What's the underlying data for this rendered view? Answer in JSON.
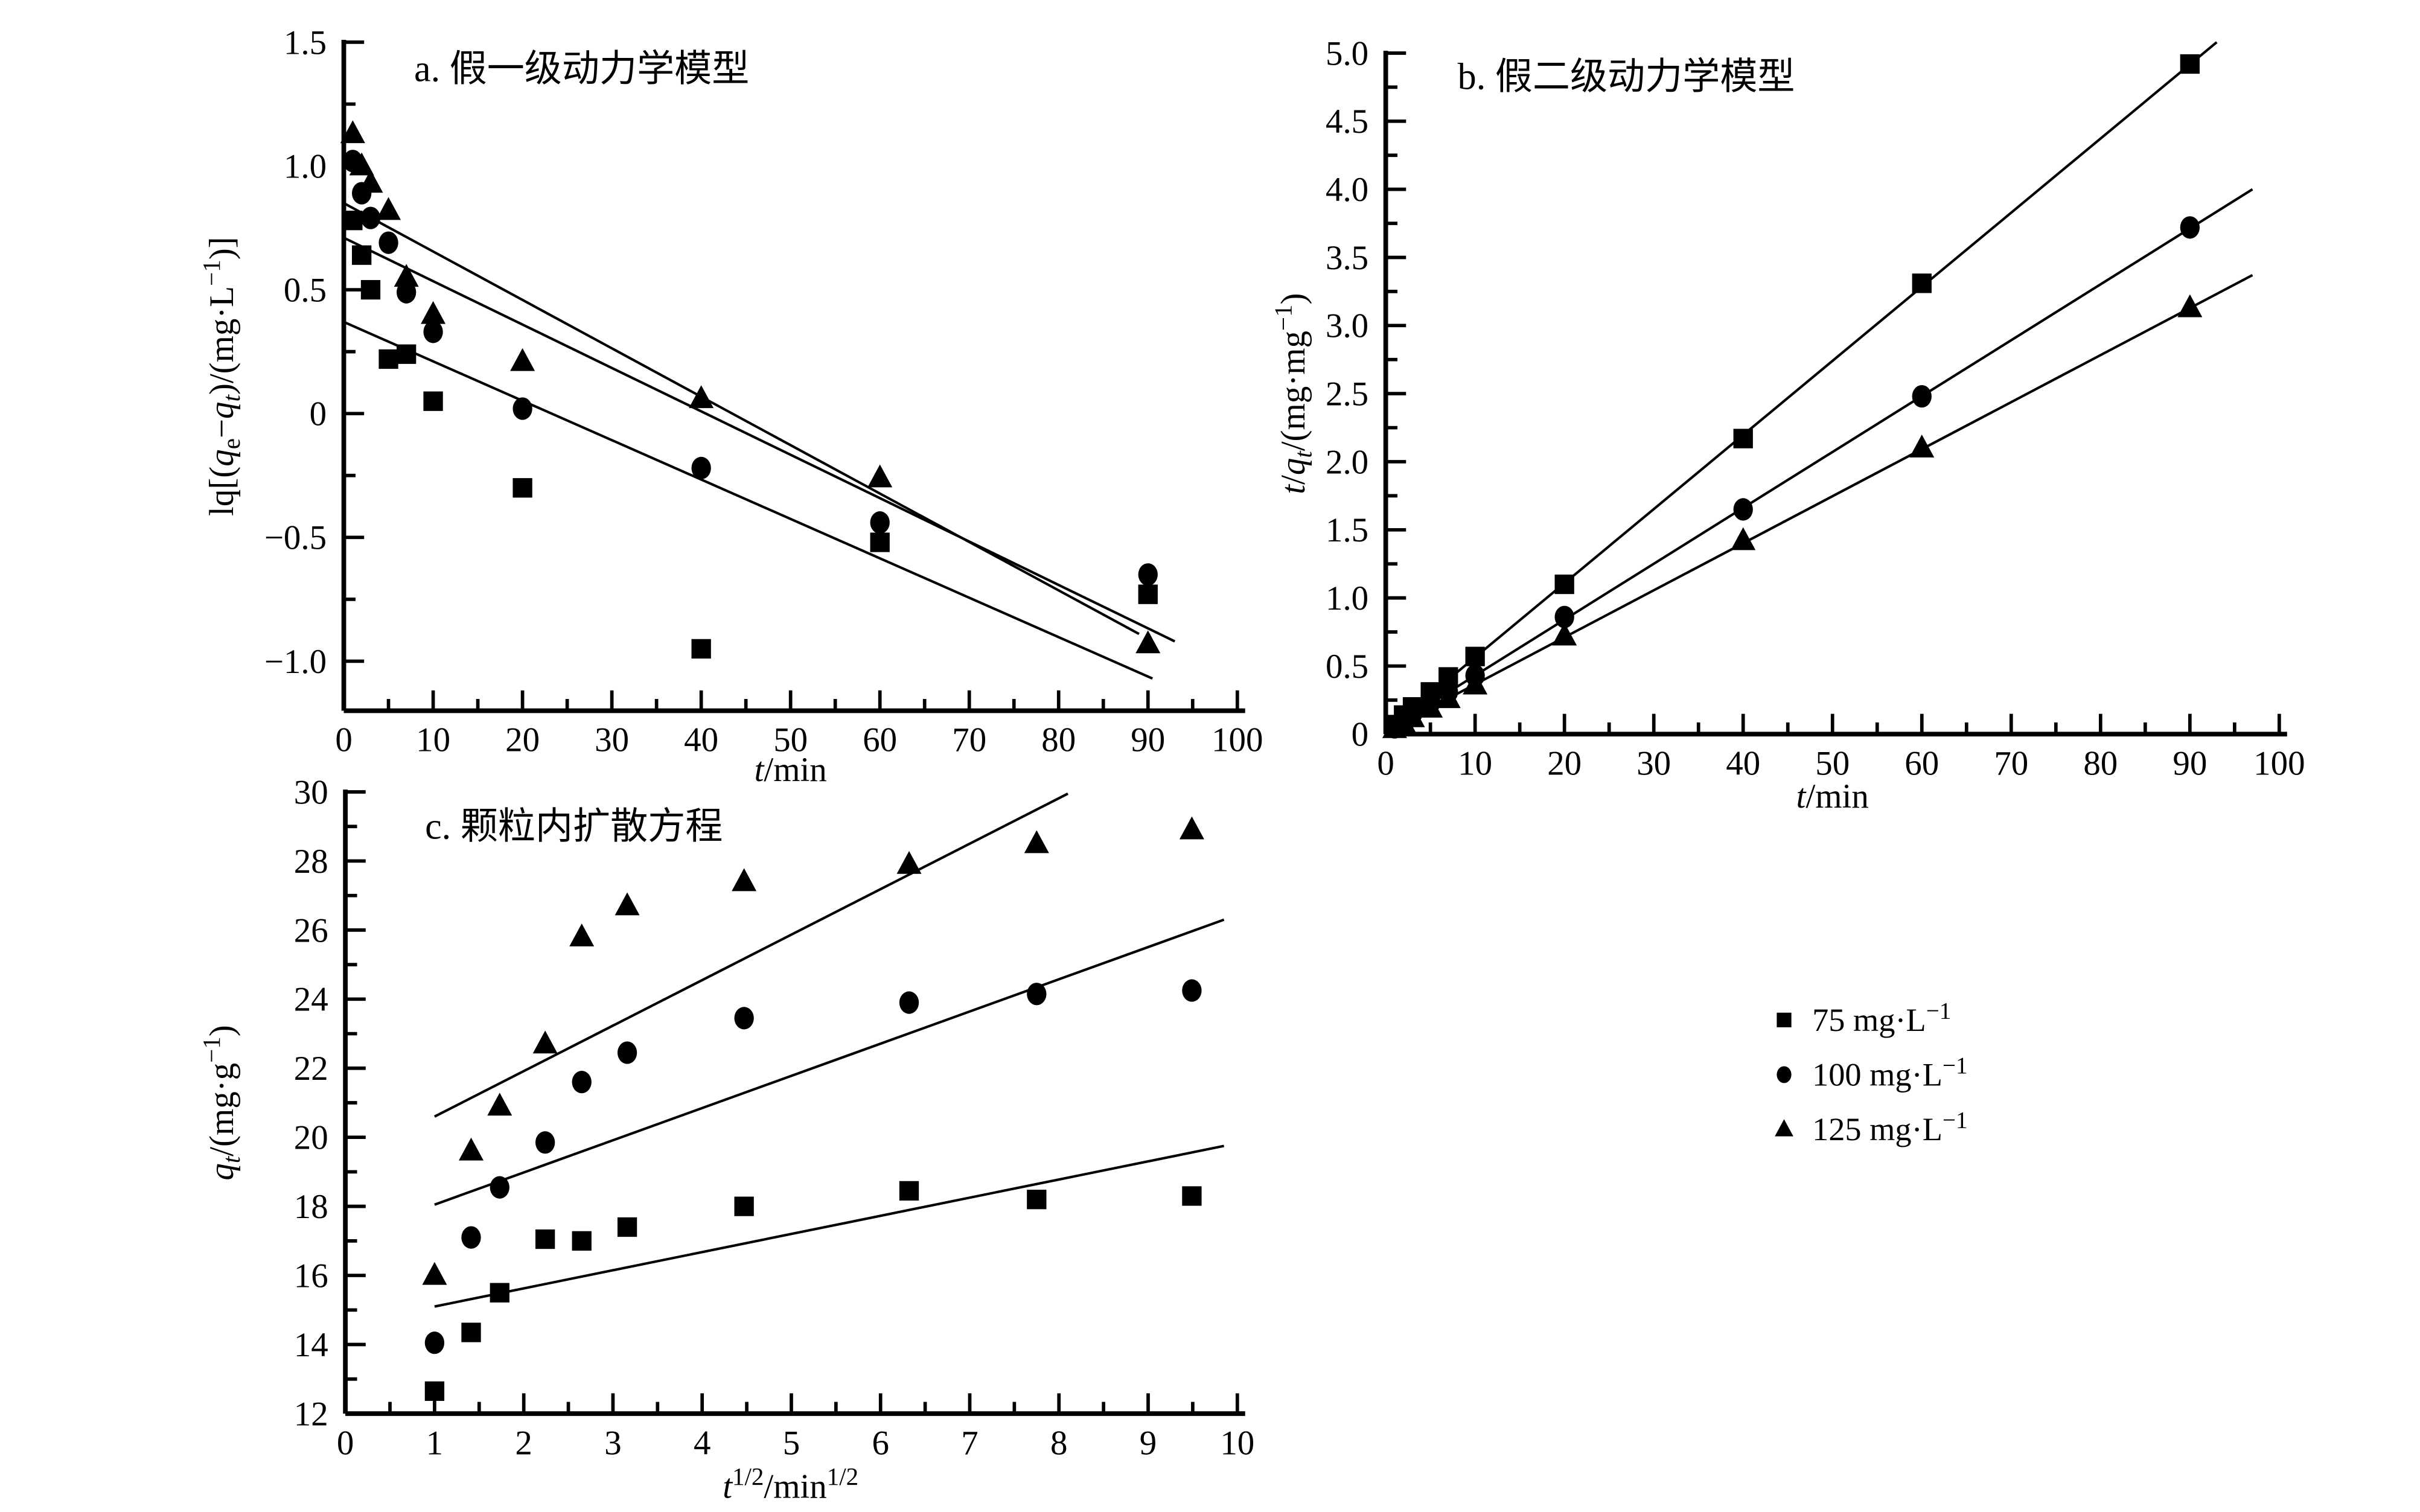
{
  "figure": {
    "background": "#ffffff",
    "ink_color": "#000000",
    "panels_note": "Three adsorption-kinetics fitting panels sharing one legend"
  },
  "legend": {
    "items": [
      {
        "marker": "square",
        "label_parts": [
          {
            "t": "75 mg·L"
          },
          {
            "t": "−1",
            "sup": 1
          }
        ],
        "label_text": "75 mg·L−1"
      },
      {
        "marker": "circle",
        "label_parts": [
          {
            "t": "100 mg·L"
          },
          {
            "t": "−1",
            "sup": 1
          }
        ],
        "label_text": "100 mg·L−1"
      },
      {
        "marker": "triangle",
        "label_parts": [
          {
            "t": "125 mg·L"
          },
          {
            "t": "−1",
            "sup": 1
          }
        ],
        "label_text": "125 mg·L−1"
      }
    ]
  },
  "chart_data": [
    {
      "id": "a",
      "type": "scatter",
      "title": "a. 假一级动力学模型",
      "xlabel_parts": [
        {
          "t": "t",
          "i": 1
        },
        {
          "t": "/min"
        }
      ],
      "ylabel_parts": [
        {
          "t": "lq[("
        },
        {
          "t": "q",
          "i": 1
        },
        {
          "t": "e",
          "sub": 1
        },
        {
          "t": "−"
        },
        {
          "t": "q",
          "i": 1
        },
        {
          "t": "t",
          "i": 1,
          "sub": 1
        },
        {
          "t": ")/(mg·L"
        },
        {
          "t": "−1",
          "sup": 1
        },
        {
          "t": ")]"
        }
      ],
      "xlim": [
        0,
        100
      ],
      "ylim": [
        -1.2,
        1.5
      ],
      "grid": false,
      "xticks": {
        "values": [
          0,
          10,
          20,
          30,
          40,
          50,
          60,
          70,
          80,
          90,
          100
        ],
        "labels": [
          "0",
          "10",
          "20",
          "30",
          "40",
          "50",
          "60",
          "70",
          "80",
          "90",
          "100"
        ]
      },
      "xticks_minor": [
        5,
        15,
        25,
        35,
        45,
        55,
        65,
        75,
        85,
        95
      ],
      "yticks": {
        "values": [
          1.5,
          1.0,
          0.5,
          0,
          -0.5,
          -1.0
        ],
        "labels": [
          "1.5",
          "1.0",
          "0.5",
          "0",
          "−0.5",
          "−1.0"
        ]
      },
      "yticks_minor": [
        1.25,
        0.75,
        0.25,
        -0.25,
        -0.75
      ],
      "series": [
        {
          "name": "75 mg·L−1",
          "marker": "square",
          "points": [
            [
              1,
              0.78
            ],
            [
              2,
              0.64
            ],
            [
              3,
              0.5
            ],
            [
              5,
              0.22
            ],
            [
              7,
              0.24
            ],
            [
              10,
              0.05
            ],
            [
              20,
              -0.3
            ],
            [
              40,
              -0.95
            ],
            [
              60,
              -0.52
            ],
            [
              90,
              -0.73
            ]
          ]
        },
        {
          "name": "100 mg·L−1",
          "marker": "circle",
          "points": [
            [
              1,
              1.02
            ],
            [
              2,
              0.89
            ],
            [
              3,
              0.79
            ],
            [
              5,
              0.69
            ],
            [
              7,
              0.49
            ],
            [
              10,
              0.33
            ],
            [
              20,
              0.02
            ],
            [
              40,
              -0.22
            ],
            [
              60,
              -0.44
            ],
            [
              90,
              -0.65
            ]
          ]
        },
        {
          "name": "125 mg·L−1",
          "marker": "triangle",
          "points": [
            [
              1,
              1.13
            ],
            [
              2,
              1.0
            ],
            [
              3,
              0.93
            ],
            [
              5,
              0.82
            ],
            [
              7,
              0.55
            ],
            [
              10,
              0.4
            ],
            [
              20,
              0.21
            ],
            [
              40,
              0.06
            ],
            [
              60,
              -0.26
            ],
            [
              90,
              -0.93
            ]
          ]
        }
      ],
      "fit_lines": [
        {
          "series": "125 mg·L−1",
          "x1": 0,
          "y1": 0.85,
          "x2": 89,
          "y2": -0.89
        },
        {
          "series": "100 mg·L−1",
          "x1": 0,
          "y1": 0.71,
          "x2": 93,
          "y2": -0.92
        },
        {
          "series": "75 mg·L−1",
          "x1": 0,
          "y1": 0.37,
          "x2": 90.5,
          "y2": -1.07
        }
      ]
    },
    {
      "id": "b",
      "type": "scatter",
      "title": "b. 假二级动力学模型",
      "xlabel_parts": [
        {
          "t": "t",
          "i": 1
        },
        {
          "t": "/min"
        }
      ],
      "ylabel_parts": [
        {
          "t": "t",
          "i": 1
        },
        {
          "t": "/"
        },
        {
          "t": "q",
          "i": 1
        },
        {
          "t": "t",
          "i": 1,
          "sub": 1
        },
        {
          "t": "/(mg·mg"
        },
        {
          "t": "−1",
          "sup": 1
        },
        {
          "t": ")"
        }
      ],
      "xlim": [
        0,
        100
      ],
      "ylim": [
        0,
        5.0
      ],
      "grid": false,
      "xticks": {
        "values": [
          0,
          10,
          20,
          30,
          40,
          50,
          60,
          70,
          80,
          90,
          100
        ],
        "labels": [
          "0",
          "10",
          "20",
          "30",
          "40",
          "50",
          "60",
          "70",
          "80",
          "90",
          "100"
        ]
      },
      "xticks_minor": [
        5,
        15,
        25,
        35,
        45,
        55,
        65,
        75,
        85,
        95
      ],
      "yticks": {
        "values": [
          5.0,
          4.5,
          4.0,
          3.5,
          3.0,
          2.5,
          2.0,
          1.5,
          1.0,
          0.5,
          0
        ],
        "labels": [
          "5.0",
          "4.5",
          "4.0",
          "3.5",
          "3.0",
          "2.5",
          "2.0",
          "1.5",
          "1.0",
          "0.5",
          "0"
        ]
      },
      "yticks_minor": [
        4.75,
        4.25,
        3.75,
        3.25,
        2.75,
        2.25,
        1.75,
        1.25,
        0.75,
        0.25
      ],
      "series": [
        {
          "name": "75 mg·L−1",
          "marker": "square",
          "points": [
            [
              1,
              0.07
            ],
            [
              2,
              0.14
            ],
            [
              3,
              0.2
            ],
            [
              5,
              0.31
            ],
            [
              7,
              0.42
            ],
            [
              10,
              0.57
            ],
            [
              20,
              1.1
            ],
            [
              40,
              2.17
            ],
            [
              60,
              3.31
            ],
            [
              90,
              4.92
            ]
          ]
        },
        {
          "name": "100 mg·L−1",
          "marker": "circle",
          "points": [
            [
              1,
              0.05
            ],
            [
              2,
              0.1
            ],
            [
              3,
              0.15
            ],
            [
              5,
              0.23
            ],
            [
              7,
              0.31
            ],
            [
              10,
              0.43
            ],
            [
              20,
              0.86
            ],
            [
              40,
              1.65
            ],
            [
              60,
              2.48
            ],
            [
              90,
              3.72
            ]
          ]
        },
        {
          "name": "125 mg·L−1",
          "marker": "triangle",
          "points": [
            [
              1,
              0.04
            ],
            [
              2,
              0.08
            ],
            [
              3,
              0.12
            ],
            [
              5,
              0.19
            ],
            [
              7,
              0.26
            ],
            [
              10,
              0.36
            ],
            [
              20,
              0.72
            ],
            [
              40,
              1.42
            ],
            [
              60,
              2.1
            ],
            [
              90,
              3.13
            ]
          ]
        }
      ],
      "fit_lines": [
        {
          "series": "75 mg·L−1",
          "x1": 0,
          "y1": 0.02,
          "x2": 93,
          "y2": 5.08
        },
        {
          "series": "100 mg·L−1",
          "x1": 0,
          "y1": 0.02,
          "x2": 97,
          "y2": 4.0
        },
        {
          "series": "125 mg·L−1",
          "x1": 0,
          "y1": 0.02,
          "x2": 97,
          "y2": 3.37
        }
      ]
    },
    {
      "id": "c",
      "type": "scatter",
      "title": "c. 颗粒内扩散方程",
      "xlabel_parts": [
        {
          "t": "t",
          "i": 1
        },
        {
          "t": "1/2",
          "sup": 1
        },
        {
          "t": "/min"
        },
        {
          "t": "1/2",
          "sup": 1
        }
      ],
      "ylabel_parts": [
        {
          "t": "q",
          "i": 1
        },
        {
          "t": "t",
          "i": 1,
          "sub": 1
        },
        {
          "t": "/(mg·g"
        },
        {
          "t": "−1",
          "sup": 1
        },
        {
          "t": ")"
        }
      ],
      "xlim": [
        0,
        10
      ],
      "ylim": [
        12,
        30
      ],
      "grid": false,
      "xticks": {
        "values": [
          0,
          1,
          2,
          3,
          4,
          5,
          6,
          7,
          8,
          9,
          10
        ],
        "labels": [
          "0",
          "1",
          "2",
          "3",
          "4",
          "5",
          "6",
          "7",
          "8",
          "9",
          "10"
        ]
      },
      "xticks_minor": [
        0.5,
        1.5,
        2.5,
        3.5,
        4.5,
        5.5,
        6.5,
        7.5,
        8.5,
        9.5
      ],
      "yticks": {
        "values": [
          30,
          28,
          26,
          24,
          22,
          20,
          18,
          16,
          14,
          12
        ],
        "labels": [
          "30",
          "28",
          "26",
          "24",
          "22",
          "20",
          "18",
          "16",
          "14",
          "12"
        ]
      },
      "yticks_minor": [
        29,
        27,
        25,
        23,
        21,
        19,
        17,
        15,
        13
      ],
      "series": [
        {
          "name": "75 mg·L−1",
          "marker": "square",
          "points": [
            [
              1,
              12.65
            ],
            [
              1.41,
              14.35
            ],
            [
              1.73,
              15.5
            ],
            [
              2.24,
              17.05
            ],
            [
              2.65,
              17.0
            ],
            [
              3.16,
              17.4
            ],
            [
              4.47,
              18.0
            ],
            [
              6.32,
              18.45
            ],
            [
              7.75,
              18.2
            ],
            [
              9.49,
              18.3
            ]
          ]
        },
        {
          "name": "100 mg·L−1",
          "marker": "circle",
          "points": [
            [
              1,
              14.05
            ],
            [
              1.41,
              17.1
            ],
            [
              1.73,
              18.55
            ],
            [
              2.24,
              19.85
            ],
            [
              2.65,
              21.6
            ],
            [
              3.16,
              22.45
            ],
            [
              4.47,
              23.45
            ],
            [
              6.32,
              23.9
            ],
            [
              7.75,
              24.15
            ],
            [
              9.49,
              24.25
            ]
          ]
        },
        {
          "name": "125 mg·L−1",
          "marker": "triangle",
          "points": [
            [
              1,
              16.0
            ],
            [
              1.41,
              19.6
            ],
            [
              1.73,
              20.9
            ],
            [
              2.24,
              22.7
            ],
            [
              2.65,
              25.8
            ],
            [
              3.16,
              26.7
            ],
            [
              4.47,
              27.4
            ],
            [
              6.32,
              27.9
            ],
            [
              7.75,
              28.5
            ],
            [
              9.49,
              28.9
            ]
          ]
        }
      ],
      "fit_lines": [
        {
          "series": "125 mg·L−1",
          "x1": 1.0,
          "y1": 20.6,
          "x2": 8.1,
          "y2": 29.95
        },
        {
          "series": "100 mg·L−1",
          "x1": 1.0,
          "y1": 18.05,
          "x2": 9.85,
          "y2": 26.3
        },
        {
          "series": "75 mg·L−1",
          "x1": 1.0,
          "y1": 15.1,
          "x2": 9.85,
          "y2": 19.75
        }
      ]
    }
  ]
}
